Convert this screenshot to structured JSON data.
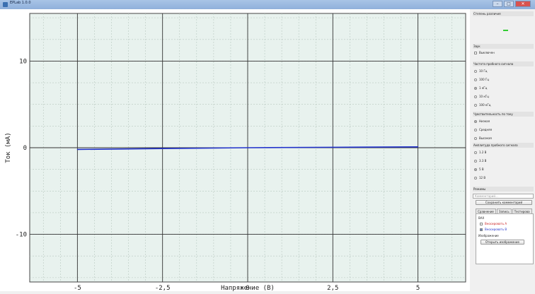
{
  "window": {
    "title": "EPLab 1.0.0"
  },
  "chart_data": {
    "type": "line",
    "xlabel": "Напряжение (В)",
    "ylabel": "Ток (мА)",
    "xlim": [
      -6.4,
      6.4
    ],
    "ylim": [
      -15.5,
      15.5
    ],
    "x_ticks": [
      "-5",
      "-2,5",
      "0",
      "2,5",
      "5"
    ],
    "x_tick_values": [
      -5,
      -2.5,
      0,
      2.5,
      5
    ],
    "y_ticks": [
      "10",
      "0",
      "-10"
    ],
    "y_tick_values": [
      10,
      0,
      -10
    ],
    "grid": true,
    "series": [
      {
        "color": "#2233cc",
        "x": [
          -5,
          -2.5,
          0,
          2.5,
          5
        ],
        "y": [
          -0.2,
          -0.1,
          0,
          0.05,
          0.1
        ]
      }
    ]
  },
  "panel": {
    "signal_level_title": "Степень различия",
    "sound_title": "Звук",
    "sound_off_label": "Выключен",
    "frequency_title": "Частота пробного сигнала",
    "frequencies": [
      "10 Гц",
      "100 Гц",
      "1 кГц",
      "10 кГц",
      "100 кГц"
    ],
    "frequency_selected": 2,
    "sensitivity_title": "Чувствительность по току",
    "sensitivities": [
      "Низкая",
      "Средняя",
      "Высокая"
    ],
    "sensitivity_selected": 0,
    "amplitude_title": "Амплитуда пробного сигнала",
    "amplitudes": [
      "1.2 В",
      "3.3 В",
      "5 В",
      "12 В"
    ],
    "amplitude_selected": 2,
    "modes_title": "Режимы",
    "comment_placeholder": "Комментарий...",
    "save_comment_label": "Сохранить комментарий",
    "tabs": [
      "Сравнение",
      "Запись",
      "Тестирова"
    ],
    "tab_active": 0,
    "vah_title": "ВАХ",
    "hide_a_label": "Вносировать А",
    "hide_b_label": "Вносировать В",
    "image_title": "Изображение",
    "open_image_label": "Открыть изображение",
    "colors": {
      "series_a": "#cc2222",
      "series_b": "#2233cc",
      "led": "#33cc33"
    }
  }
}
